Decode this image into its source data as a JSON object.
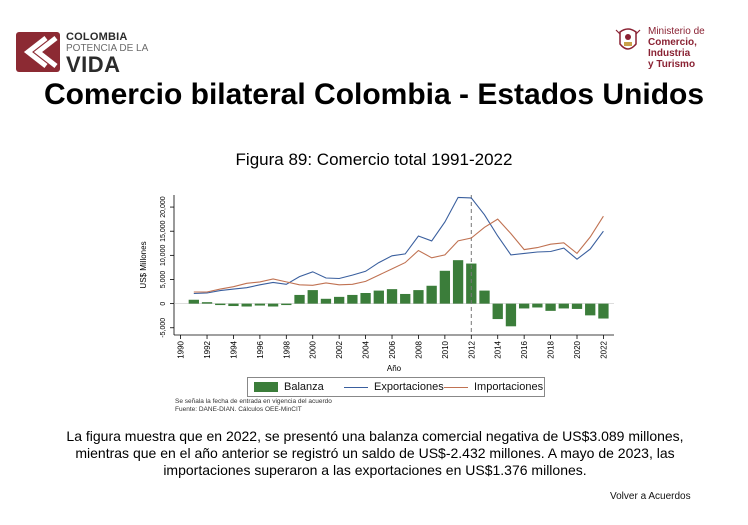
{
  "header": {
    "brand_line1": "COLOMBIA",
    "brand_line2": "POTENCIA DE LA",
    "brand_line3": "VIDA",
    "ministry_line1": "Ministerio de",
    "ministry_line2": "Comercio, Industria",
    "ministry_line3": "y Turismo"
  },
  "page_title": "Comercio bilateral Colombia - Estados Unidos",
  "figure_title": "Figura 89: Comercio total 1991-2022",
  "chart_data": {
    "type": "bar+line",
    "title": "Figura 89: Comercio total 1991-2022",
    "xlabel": "Año",
    "ylabel": "US$ Millones",
    "ylim": [
      -6500,
      22500
    ],
    "yticks": [
      -5000,
      0,
      5000,
      10000,
      15000,
      20000
    ],
    "ytick_labels": [
      "-5,000",
      "0",
      "5,000",
      "10,000",
      "15,000",
      "20,000"
    ],
    "xticks": [
      1990,
      1992,
      1994,
      1996,
      1998,
      2000,
      2002,
      2004,
      2006,
      2008,
      2010,
      2012,
      2014,
      2016,
      2018,
      2020,
      2022
    ],
    "x": [
      1991,
      1992,
      1993,
      1994,
      1995,
      1996,
      1997,
      1998,
      1999,
      2000,
      2001,
      2002,
      2003,
      2004,
      2005,
      2006,
      2007,
      2008,
      2009,
      2010,
      2011,
      2012,
      2013,
      2014,
      2015,
      2016,
      2017,
      2018,
      2019,
      2020,
      2021,
      2022
    ],
    "series": [
      {
        "name": "Balanza",
        "kind": "bar",
        "color": "#3b7d3a",
        "values": [
          800,
          300,
          -300,
          -500,
          -600,
          -400,
          -600,
          -300,
          1800,
          2800,
          1000,
          1400,
          1800,
          2200,
          2700,
          3000,
          2000,
          2800,
          3700,
          6800,
          9000,
          8300,
          2700,
          -3200,
          -4700,
          -1000,
          -800,
          -1500,
          -1000,
          -1100,
          -2432,
          -3089
        ]
      },
      {
        "name": "Exportaciones",
        "kind": "line",
        "color": "#3a5f9e",
        "values": [
          2100,
          2200,
          2700,
          3000,
          3300,
          3900,
          4400,
          4000,
          5600,
          6600,
          5300,
          5200,
          5900,
          6700,
          8500,
          9900,
          10300,
          14000,
          13000,
          16900,
          22000,
          21900,
          18400,
          14000,
          10100,
          10400,
          10700,
          10800,
          11500,
          9200,
          11300,
          15000
        ]
      },
      {
        "name": "Importaciones",
        "kind": "line",
        "color": "#c07252",
        "values": [
          2400,
          2400,
          3000,
          3500,
          4200,
          4500,
          5100,
          4500,
          3900,
          3800,
          4300,
          3900,
          4000,
          4600,
          5900,
          7200,
          8500,
          11000,
          9500,
          10100,
          13000,
          13600,
          15800,
          17500,
          14500,
          11200,
          11600,
          12300,
          12600,
          10400,
          13800,
          18100
        ]
      }
    ],
    "reference_line": {
      "x": 2012,
      "style": "dashed",
      "color": "#777777"
    },
    "legend": [
      "Balanza",
      "Exportaciones",
      "Importaciones"
    ],
    "legend_position": "bottom",
    "notes": [
      "Se señala la fecha de entrada en vigencia del acuerdo",
      "Fuente: DANE-DIAN. Cálculos OEE-MinCIT"
    ]
  },
  "paragraph": "La figura muestra que en 2022, se presentó una balanza comercial negativa de US$3.089 millones, mientras que en el año anterior se registró un saldo de US$-2.432 millones. A mayo de 2023, las importaciones superaron a las exportaciones en US$1.376 millones.",
  "back_link": "Volver a Acuerdos"
}
